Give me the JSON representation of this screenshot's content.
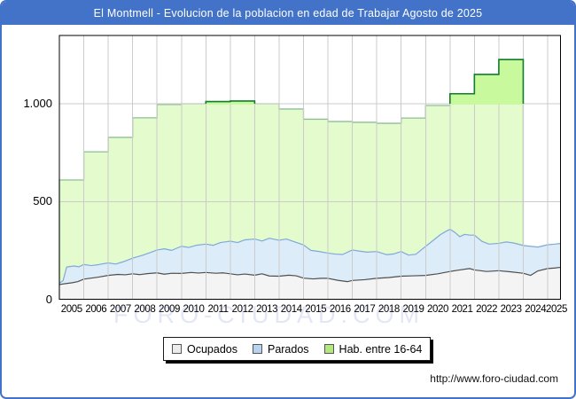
{
  "window": {
    "title": "El Montmell - Evolucion de la poblacion en edad de Trabajar Agosto de 2025"
  },
  "watermark": "FORO-CIUDAD.COM",
  "footer_url": "http://www.foro-ciudad.com",
  "legend": {
    "items": [
      {
        "label": "Ocupados",
        "swatch": "#ececec"
      },
      {
        "label": "Parados",
        "swatch": "#b7d3f0"
      },
      {
        "label": "Hab. entre 16-64",
        "swatch": "#b3e97c"
      }
    ]
  },
  "axes": {
    "y_ticks": [
      {
        "label": "0",
        "value": 0
      },
      {
        "label": "500",
        "value": 500
      },
      {
        "label": "1.000",
        "value": 1000
      }
    ],
    "x_ticks": [
      "2005",
      "2006",
      "2007",
      "2008",
      "2009",
      "2010",
      "2011",
      "2012",
      "2013",
      "2014",
      "2015",
      "2016",
      "2017",
      "2018",
      "2019",
      "2020",
      "2021",
      "2022",
      "2023",
      "2024",
      "2025"
    ]
  },
  "chart_data": {
    "type": "area",
    "title": "El Montmell - Evolucion de la poblacion en edad de Trabajar Agosto de 2025",
    "xlabel": "",
    "ylabel": "",
    "x_range": [
      2005,
      2025.6
    ],
    "ylim": [
      0,
      1350
    ],
    "y_gridlines": [
      500,
      1000
    ],
    "grid": true,
    "legend_position": "bottom",
    "series": [
      {
        "name": "Hab. entre 16-64",
        "kind": "annual_steps",
        "start_year": 2005,
        "end_year": 2024,
        "values": [
          610,
          754,
          828,
          928,
          996,
          1000,
          1011,
          1014,
          1000,
          973,
          921,
          909,
          905,
          900,
          927,
          991,
          1051,
          1150,
          1226
        ],
        "fill": "#e4fbce",
        "fill_above_threshold": "#c9f99d",
        "highlight_threshold": 1000,
        "stroke": "#8fbe95",
        "stroke_dark": "#0e7d2c"
      },
      {
        "name": "Parados",
        "kind": "monthly_line",
        "points": [
          [
            2005.0,
            82
          ],
          [
            2005.15,
            95
          ],
          [
            2005.3,
            165
          ],
          [
            2005.6,
            170
          ],
          [
            2005.8,
            166
          ],
          [
            2006.0,
            178
          ],
          [
            2006.3,
            172
          ],
          [
            2006.6,
            177
          ],
          [
            2007.0,
            186
          ],
          [
            2007.3,
            180
          ],
          [
            2007.6,
            191
          ],
          [
            2008.0,
            210
          ],
          [
            2008.4,
            225
          ],
          [
            2008.7,
            238
          ],
          [
            2009.0,
            252
          ],
          [
            2009.3,
            258
          ],
          [
            2009.6,
            250
          ],
          [
            2010.0,
            271
          ],
          [
            2010.3,
            265
          ],
          [
            2010.6,
            276
          ],
          [
            2011.0,
            282
          ],
          [
            2011.3,
            276
          ],
          [
            2011.6,
            290
          ],
          [
            2012.0,
            297
          ],
          [
            2012.3,
            290
          ],
          [
            2012.6,
            304
          ],
          [
            2013.0,
            308
          ],
          [
            2013.3,
            298
          ],
          [
            2013.6,
            312
          ],
          [
            2014.0,
            302
          ],
          [
            2014.3,
            308
          ],
          [
            2014.6,
            295
          ],
          [
            2015.0,
            278
          ],
          [
            2015.3,
            250
          ],
          [
            2015.6,
            245
          ],
          [
            2016.0,
            236
          ],
          [
            2016.3,
            231
          ],
          [
            2016.6,
            229
          ],
          [
            2017.0,
            252
          ],
          [
            2017.3,
            246
          ],
          [
            2017.6,
            241
          ],
          [
            2018.0,
            244
          ],
          [
            2018.4,
            228
          ],
          [
            2018.7,
            232
          ],
          [
            2019.0,
            244
          ],
          [
            2019.3,
            226
          ],
          [
            2019.6,
            230
          ],
          [
            2020.0,
            270
          ],
          [
            2020.3,
            300
          ],
          [
            2020.6,
            330
          ],
          [
            2020.8,
            345
          ],
          [
            2021.0,
            358
          ],
          [
            2021.2,
            342
          ],
          [
            2021.4,
            320
          ],
          [
            2021.6,
            332
          ],
          [
            2021.8,
            328
          ],
          [
            2022.0,
            328
          ],
          [
            2022.3,
            297
          ],
          [
            2022.6,
            282
          ],
          [
            2023.0,
            286
          ],
          [
            2023.3,
            293
          ],
          [
            2023.6,
            288
          ],
          [
            2024.0,
            275
          ],
          [
            2024.3,
            271
          ],
          [
            2024.6,
            267
          ],
          [
            2025.0,
            279
          ],
          [
            2025.3,
            282
          ],
          [
            2025.6,
            285
          ]
        ],
        "fill": "#dcecf9",
        "stroke": "#7ea9d8"
      },
      {
        "name": "Ocupados",
        "kind": "monthly_line",
        "points": [
          [
            2005.0,
            75
          ],
          [
            2005.25,
            80
          ],
          [
            2005.5,
            84
          ],
          [
            2005.75,
            90
          ],
          [
            2006.0,
            103
          ],
          [
            2006.3,
            108
          ],
          [
            2006.6,
            113
          ],
          [
            2007.0,
            122
          ],
          [
            2007.4,
            127
          ],
          [
            2007.7,
            125
          ],
          [
            2008.0,
            130
          ],
          [
            2008.3,
            126
          ],
          [
            2008.6,
            131
          ],
          [
            2009.0,
            135
          ],
          [
            2009.3,
            128
          ],
          [
            2009.6,
            133
          ],
          [
            2010.0,
            132
          ],
          [
            2010.4,
            137
          ],
          [
            2010.7,
            134
          ],
          [
            2011.0,
            137
          ],
          [
            2011.4,
            133
          ],
          [
            2011.7,
            135
          ],
          [
            2012.0,
            130
          ],
          [
            2012.3,
            125
          ],
          [
            2012.6,
            129
          ],
          [
            2013.0,
            123
          ],
          [
            2013.3,
            130
          ],
          [
            2013.6,
            119
          ],
          [
            2014.0,
            118
          ],
          [
            2014.4,
            123
          ],
          [
            2014.7,
            120
          ],
          [
            2015.0,
            108
          ],
          [
            2015.4,
            104
          ],
          [
            2015.7,
            107
          ],
          [
            2016.0,
            107
          ],
          [
            2016.4,
            97
          ],
          [
            2016.8,
            90
          ],
          [
            2017.0,
            96
          ],
          [
            2017.5,
            100
          ],
          [
            2018.0,
            107
          ],
          [
            2018.5,
            111
          ],
          [
            2019.0,
            118
          ],
          [
            2019.5,
            120
          ],
          [
            2020.0,
            122
          ],
          [
            2020.5,
            130
          ],
          [
            2021.0,
            142
          ],
          [
            2021.4,
            150
          ],
          [
            2021.8,
            157
          ],
          [
            2022.0,
            150
          ],
          [
            2022.5,
            142
          ],
          [
            2023.0,
            146
          ],
          [
            2023.5,
            140
          ],
          [
            2024.0,
            133
          ],
          [
            2024.3,
            122
          ],
          [
            2024.6,
            145
          ],
          [
            2025.0,
            157
          ],
          [
            2025.3,
            160
          ],
          [
            2025.6,
            163
          ]
        ],
        "fill": "#f4f4f4",
        "stroke": "#4f4f4f"
      }
    ],
    "colors": {
      "frame": "#4273c8",
      "grid": "#cbcbcb",
      "plot_border": "#000000"
    }
  }
}
